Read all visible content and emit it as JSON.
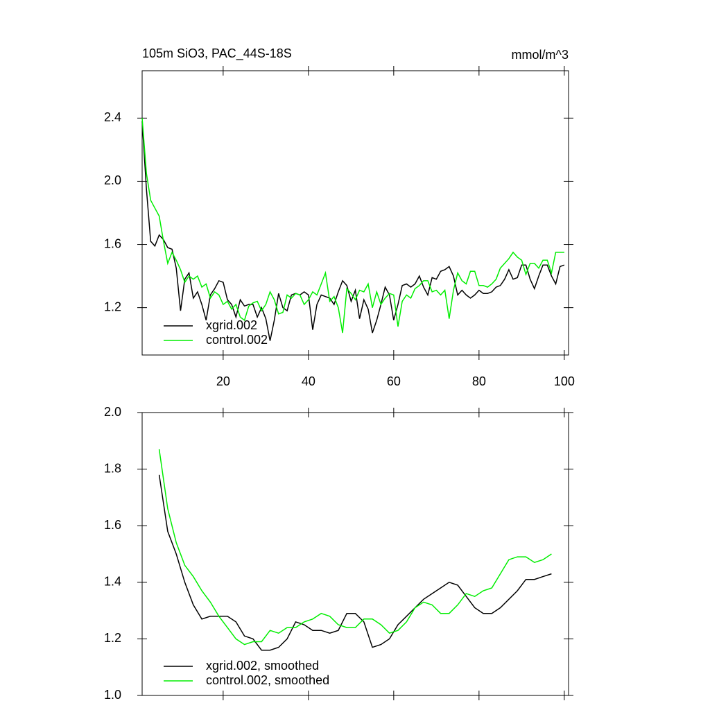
{
  "chart_data": [
    {
      "type": "line",
      "title": "105m SiO3, PAC_44S-18S",
      "units": "mmol/m^3",
      "x": [
        1,
        2,
        3,
        4,
        5,
        6,
        7,
        8,
        9,
        10,
        11,
        12,
        13,
        14,
        15,
        16,
        17,
        18,
        19,
        20,
        21,
        22,
        23,
        24,
        25,
        26,
        27,
        28,
        29,
        30,
        31,
        32,
        33,
        34,
        35,
        36,
        37,
        38,
        39,
        40,
        41,
        42,
        43,
        44,
        45,
        46,
        47,
        48,
        49,
        50,
        51,
        52,
        53,
        54,
        55,
        56,
        57,
        58,
        59,
        60,
        61,
        62,
        63,
        64,
        65,
        66,
        67,
        68,
        69,
        70,
        71,
        72,
        73,
        74,
        75,
        76,
        77,
        78,
        79,
        80,
        81,
        82,
        83,
        84,
        85,
        86,
        87,
        88,
        89,
        90,
        91,
        92,
        93,
        94,
        95,
        96,
        97,
        98,
        99,
        100
      ],
      "series": [
        {
          "name": "xgrid.002",
          "color": "#000000",
          "values": [
            2.38,
            1.95,
            1.62,
            1.59,
            1.66,
            1.63,
            1.58,
            1.57,
            1.45,
            1.18,
            1.38,
            1.42,
            1.26,
            1.3,
            1.22,
            1.12,
            1.28,
            1.32,
            1.37,
            1.36,
            1.25,
            1.22,
            1.14,
            1.25,
            1.21,
            1.22,
            1.22,
            1.14,
            1.2,
            1.13,
            0.99,
            1.12,
            1.29,
            1.2,
            1.18,
            1.28,
            1.29,
            1.28,
            1.3,
            1.28,
            1.06,
            1.22,
            1.28,
            1.27,
            1.26,
            1.22,
            1.3,
            1.37,
            1.34,
            1.24,
            1.31,
            1.13,
            1.25,
            1.19,
            1.04,
            1.12,
            1.22,
            1.33,
            1.28,
            1.12,
            1.22,
            1.34,
            1.35,
            1.33,
            1.35,
            1.4,
            1.33,
            1.28,
            1.39,
            1.38,
            1.43,
            1.44,
            1.46,
            1.4,
            1.28,
            1.31,
            1.28,
            1.26,
            1.28,
            1.31,
            1.29,
            1.29,
            1.3,
            1.33,
            1.34,
            1.38,
            1.44,
            1.38,
            1.39,
            1.47,
            1.47,
            1.38,
            1.32,
            1.4,
            1.47,
            1.47,
            1.4,
            1.35,
            1.46,
            1.47
          ]
        },
        {
          "name": "control.002",
          "color": "#00ee00",
          "values": [
            2.4,
            2.05,
            1.88,
            1.83,
            1.78,
            1.62,
            1.48,
            1.55,
            1.5,
            1.44,
            1.36,
            1.4,
            1.38,
            1.4,
            1.33,
            1.35,
            1.26,
            1.3,
            1.28,
            1.22,
            1.24,
            1.19,
            1.22,
            1.14,
            1.12,
            1.21,
            1.23,
            1.24,
            1.18,
            1.22,
            1.3,
            1.25,
            1.16,
            1.17,
            1.28,
            1.26,
            1.29,
            1.28,
            1.22,
            1.25,
            1.3,
            1.28,
            1.35,
            1.42,
            1.24,
            1.27,
            1.2,
            1.04,
            1.32,
            1.29,
            1.25,
            1.31,
            1.3,
            1.35,
            1.2,
            1.3,
            1.22,
            1.26,
            1.29,
            1.28,
            1.08,
            1.24,
            1.28,
            1.26,
            1.32,
            1.34,
            1.37,
            1.37,
            1.3,
            1.31,
            1.28,
            1.31,
            1.13,
            1.31,
            1.42,
            1.37,
            1.35,
            1.43,
            1.43,
            1.34,
            1.34,
            1.33,
            1.35,
            1.38,
            1.45,
            1.48,
            1.51,
            1.55,
            1.52,
            1.5,
            1.41,
            1.48,
            1.48,
            1.45,
            1.5,
            1.5,
            1.42,
            1.55,
            1.55,
            1.55
          ]
        }
      ],
      "xlim": [
        1,
        101
      ],
      "xticks": [
        20,
        40,
        60,
        80,
        100
      ],
      "xtick_labels": true,
      "ylim": [
        0.9,
        2.7
      ],
      "yticks": [
        1.2,
        1.6,
        {
          "value": 2,
          "label": "2.0"
        },
        2.4
      ],
      "legend": "lower left"
    },
    {
      "type": "line",
      "x": [
        5,
        7,
        9,
        11,
        13,
        15,
        17,
        19,
        21,
        23,
        25,
        27,
        29,
        31,
        33,
        35,
        37,
        39,
        41,
        43,
        45,
        47,
        49,
        51,
        53,
        55,
        57,
        59,
        61,
        63,
        65,
        67,
        69,
        71,
        73,
        75,
        77,
        79,
        81,
        83,
        85,
        87,
        89,
        91,
        93,
        95,
        97
      ],
      "series": [
        {
          "name": "xgrid.002, smoothed",
          "color": "#000000",
          "values": [
            1.78,
            1.58,
            1.5,
            1.4,
            1.32,
            1.27,
            1.28,
            1.28,
            1.28,
            1.26,
            1.21,
            1.2,
            1.16,
            1.16,
            1.17,
            1.2,
            1.26,
            1.25,
            1.23,
            1.23,
            1.22,
            1.23,
            1.29,
            1.29,
            1.26,
            1.17,
            1.18,
            1.2,
            1.25,
            1.28,
            1.31,
            1.34,
            1.36,
            1.38,
            1.4,
            1.39,
            1.35,
            1.31,
            1.29,
            1.29,
            1.31,
            1.34,
            1.37,
            1.41,
            1.41,
            1.42,
            1.43
          ]
        },
        {
          "name": "control.002, smoothed",
          "color": "#00ee00",
          "values": [
            1.87,
            1.66,
            1.54,
            1.46,
            1.42,
            1.37,
            1.33,
            1.28,
            1.24,
            1.2,
            1.18,
            1.19,
            1.19,
            1.23,
            1.22,
            1.24,
            1.24,
            1.26,
            1.27,
            1.29,
            1.28,
            1.25,
            1.24,
            1.24,
            1.27,
            1.27,
            1.25,
            1.22,
            1.23,
            1.26,
            1.31,
            1.33,
            1.32,
            1.29,
            1.29,
            1.32,
            1.36,
            1.35,
            1.37,
            1.38,
            1.43,
            1.48,
            1.49,
            1.49,
            1.47,
            1.48,
            1.5
          ]
        }
      ],
      "xlim": [
        1,
        101
      ],
      "xticks": [
        20,
        40,
        60,
        80,
        100
      ],
      "xtick_labels": false,
      "ylim": [
        1.0,
        2.0
      ],
      "yticks": [
        {
          "value": 1,
          "label": "1.0"
        },
        1.2,
        1.4,
        1.6,
        1.8,
        {
          "value": 2,
          "label": "2.0"
        }
      ],
      "legend": "lower left"
    }
  ]
}
